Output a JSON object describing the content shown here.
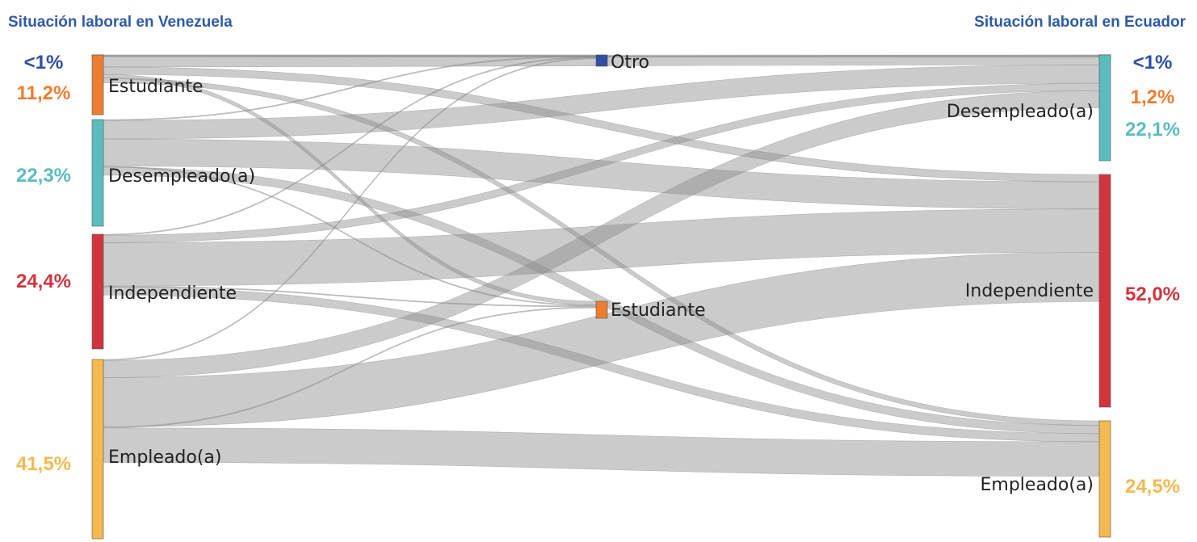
{
  "titles": {
    "left": "Situación laboral en Venezuela",
    "right": "Situación laboral en Ecuador"
  },
  "colors": {
    "otro": "#2e4fa3",
    "estudiante": "#ed7d31",
    "desempleado": "#5bbcbf",
    "independiente": "#d0343d",
    "empleado": "#f5b94f",
    "link": "#8c8c8c"
  },
  "chart_data": {
    "type": "sankey",
    "title": "",
    "left_nodes": [
      {
        "id": "V_otro",
        "label": "",
        "pct_label": "<1%",
        "pct": 0.5,
        "color_key": "otro"
      },
      {
        "id": "V_est",
        "label": "Estudiante",
        "pct_label": "11,2%",
        "pct": 11.2,
        "color_key": "estudiante"
      },
      {
        "id": "V_des",
        "label": "Desempleado(a)",
        "pct_label": "22,3%",
        "pct": 22.3,
        "color_key": "desempleado"
      },
      {
        "id": "V_ind",
        "label": "Independiente",
        "pct_label": "24,4%",
        "pct": 24.4,
        "color_key": "independiente"
      },
      {
        "id": "V_emp",
        "label": "Empleado(a)",
        "pct_label": "41,5%",
        "pct": 41.5,
        "color_key": "empleado"
      }
    ],
    "middle_nodes": [
      {
        "id": "M_otro",
        "label": "Otro",
        "pct": 1.0,
        "color_key": "otro"
      },
      {
        "id": "M_est",
        "label": "Estudiante",
        "pct": 2.0,
        "color_key": "estudiante"
      }
    ],
    "right_nodes": [
      {
        "id": "E_otro",
        "label": "",
        "pct_label": "<1%",
        "pct": 0.5,
        "color_key": "otro"
      },
      {
        "id": "E_est",
        "label": "",
        "pct_label": "1,2%",
        "pct": 1.2,
        "color_key": "estudiante"
      },
      {
        "id": "E_des",
        "label": "Desempleado(a)",
        "pct_label": "22,1%",
        "pct": 22.1,
        "color_key": "desempleado"
      },
      {
        "id": "E_ind",
        "label": "Independiente",
        "pct_label": "52,0%",
        "pct": 52.0,
        "color_key": "independiente"
      },
      {
        "id": "E_emp",
        "label": "Empleado(a)",
        "pct_label": "24,5%",
        "pct": 24.5,
        "color_key": "empleado"
      }
    ],
    "links": [
      {
        "source": "V_otro",
        "target": "E_otro",
        "value": 0.5
      },
      {
        "source": "V_est",
        "target": "M_otro",
        "value": 0.3
      },
      {
        "source": "V_est",
        "target": "E_otro",
        "value": 0.5
      },
      {
        "source": "V_est",
        "target": "E_des",
        "value": 4.0
      },
      {
        "source": "V_est",
        "target": "E_ind",
        "value": 3.0
      },
      {
        "source": "V_est",
        "target": "M_est",
        "value": 1.5
      },
      {
        "source": "V_est",
        "target": "E_emp",
        "value": 1.9
      },
      {
        "source": "V_des",
        "target": "M_otro",
        "value": 0.2
      },
      {
        "source": "V_des",
        "target": "E_des",
        "value": 7.5
      },
      {
        "source": "V_des",
        "target": "E_ind",
        "value": 11.0
      },
      {
        "source": "V_des",
        "target": "M_est",
        "value": 0.3
      },
      {
        "source": "V_des",
        "target": "E_emp",
        "value": 3.3
      },
      {
        "source": "V_ind",
        "target": "M_otro",
        "value": 0.2
      },
      {
        "source": "V_ind",
        "target": "E_des",
        "value": 3.0
      },
      {
        "source": "V_ind",
        "target": "E_ind",
        "value": 17.6
      },
      {
        "source": "V_ind",
        "target": "M_est",
        "value": 0.3
      },
      {
        "source": "V_ind",
        "target": "E_emp",
        "value": 3.3
      },
      {
        "source": "V_emp",
        "target": "M_otro",
        "value": 0.3
      },
      {
        "source": "V_emp",
        "target": "E_des",
        "value": 7.0
      },
      {
        "source": "V_emp",
        "target": "E_ind",
        "value": 20.0
      },
      {
        "source": "V_emp",
        "target": "M_est",
        "value": 0.2
      },
      {
        "source": "V_emp",
        "target": "E_emp",
        "value": 14.0
      }
    ]
  }
}
